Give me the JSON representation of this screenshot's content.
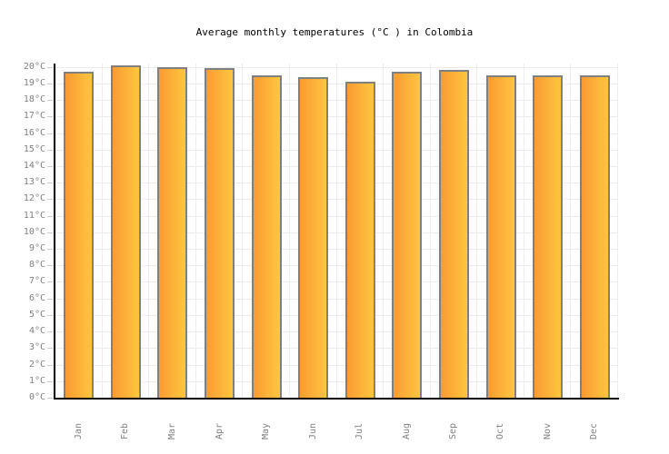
{
  "chart_data": {
    "type": "bar",
    "title": "Average monthly temperatures (°C ) in Colombia",
    "categories": [
      "Jan",
      "Feb",
      "Mar",
      "Apr",
      "May",
      "Jun",
      "Jul",
      "Aug",
      "Sep",
      "Oct",
      "Nov",
      "Dec"
    ],
    "values": [
      19.7,
      20.1,
      20,
      19.9,
      19.5,
      19.4,
      19.1,
      19.7,
      19.8,
      19.5,
      19.5,
      19.5
    ],
    "unit": "°C",
    "xlabel": "",
    "ylabel": "",
    "ylim": [
      0,
      20.2
    ],
    "ytick_step": 1,
    "ytick_suffix": "°C",
    "grid": true,
    "legend": false
  },
  "style": {
    "background": "#FFFFFF",
    "title_color": "#000000",
    "axis_color": "#000000",
    "grid_color": "#ECECEC",
    "tick_mark_color": "#CCCCCC",
    "label_color": "#808080",
    "bar_gradient_left": "#FA9B33",
    "bar_gradient_right": "#FDC63E",
    "bar_border_color": "#808080"
  }
}
